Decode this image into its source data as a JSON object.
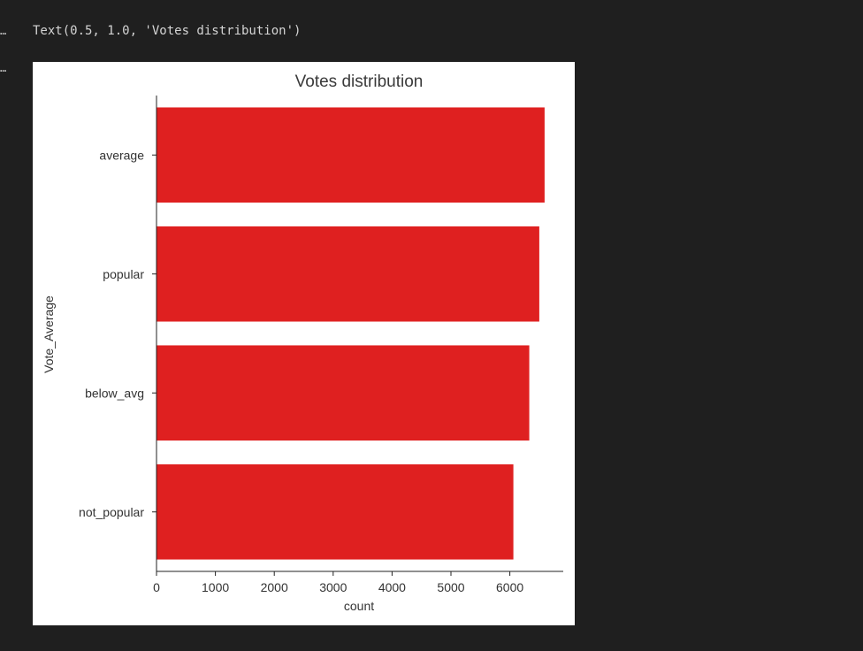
{
  "cell": {
    "output_prompt_1": "…",
    "output_prompt_2": "…",
    "text_output": "Text(0.5, 1.0, 'Votes distribution')"
  },
  "chart_data": {
    "type": "bar",
    "orientation": "horizontal",
    "title": "Votes distribution",
    "xlabel": "count",
    "ylabel": "Vote_Average",
    "categories": [
      "average",
      "popular",
      "below_avg",
      "not_popular"
    ],
    "values": [
      6590,
      6500,
      6330,
      6060
    ],
    "xlim": [
      0,
      6950
    ],
    "xticks": [
      0,
      1000,
      2000,
      3000,
      4000,
      5000,
      6000
    ],
    "xtick_labels": [
      "0",
      "1000",
      "2000",
      "3000",
      "4000",
      "5000",
      "6000"
    ],
    "bar_color": "#df2020",
    "grid": false,
    "legend": "none"
  }
}
